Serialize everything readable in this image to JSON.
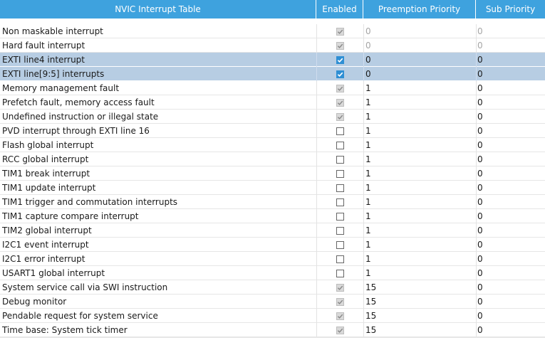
{
  "headers": {
    "name": "NVIC Interrupt Table",
    "enabled": "Enabled",
    "preemption": "Preemption Priority",
    "sub": "Sub Priority"
  },
  "rows": [
    {
      "name": "Non maskable interrupt",
      "enabled": true,
      "enabled_editable": false,
      "preemption": "0",
      "sub": "0",
      "value_muted": true,
      "selected": false
    },
    {
      "name": "Hard fault interrupt",
      "enabled": true,
      "enabled_editable": false,
      "preemption": "0",
      "sub": "0",
      "value_muted": true,
      "selected": false
    },
    {
      "name": "EXTI line4 interrupt",
      "enabled": true,
      "enabled_editable": true,
      "preemption": "0",
      "sub": "0",
      "value_muted": false,
      "selected": true
    },
    {
      "name": "EXTI line[9:5] interrupts",
      "enabled": true,
      "enabled_editable": true,
      "preemption": "0",
      "sub": "0",
      "value_muted": false,
      "selected": true
    },
    {
      "name": "Memory management fault",
      "enabled": true,
      "enabled_editable": false,
      "preemption": "1",
      "sub": "0",
      "value_muted": false,
      "selected": false
    },
    {
      "name": "Prefetch fault, memory access fault",
      "enabled": true,
      "enabled_editable": false,
      "preemption": "1",
      "sub": "0",
      "value_muted": false,
      "selected": false
    },
    {
      "name": "Undefined instruction or illegal state",
      "enabled": true,
      "enabled_editable": false,
      "preemption": "1",
      "sub": "0",
      "value_muted": false,
      "selected": false
    },
    {
      "name": "PVD interrupt through EXTI line 16",
      "enabled": false,
      "enabled_editable": true,
      "preemption": "1",
      "sub": "0",
      "value_muted": false,
      "selected": false
    },
    {
      "name": "Flash global interrupt",
      "enabled": false,
      "enabled_editable": true,
      "preemption": "1",
      "sub": "0",
      "value_muted": false,
      "selected": false
    },
    {
      "name": "RCC global interrupt",
      "enabled": false,
      "enabled_editable": true,
      "preemption": "1",
      "sub": "0",
      "value_muted": false,
      "selected": false
    },
    {
      "name": "TIM1 break interrupt",
      "enabled": false,
      "enabled_editable": true,
      "preemption": "1",
      "sub": "0",
      "value_muted": false,
      "selected": false
    },
    {
      "name": "TIM1 update interrupt",
      "enabled": false,
      "enabled_editable": true,
      "preemption": "1",
      "sub": "0",
      "value_muted": false,
      "selected": false
    },
    {
      "name": "TIM1 trigger and commutation interrupts",
      "enabled": false,
      "enabled_editable": true,
      "preemption": "1",
      "sub": "0",
      "value_muted": false,
      "selected": false
    },
    {
      "name": "TIM1 capture compare interrupt",
      "enabled": false,
      "enabled_editable": true,
      "preemption": "1",
      "sub": "0",
      "value_muted": false,
      "selected": false
    },
    {
      "name": "TIM2 global interrupt",
      "enabled": false,
      "enabled_editable": true,
      "preemption": "1",
      "sub": "0",
      "value_muted": false,
      "selected": false
    },
    {
      "name": "I2C1 event interrupt",
      "enabled": false,
      "enabled_editable": true,
      "preemption": "1",
      "sub": "0",
      "value_muted": false,
      "selected": false
    },
    {
      "name": "I2C1 error interrupt",
      "enabled": false,
      "enabled_editable": true,
      "preemption": "1",
      "sub": "0",
      "value_muted": false,
      "selected": false
    },
    {
      "name": "USART1 global interrupt",
      "enabled": false,
      "enabled_editable": true,
      "preemption": "1",
      "sub": "0",
      "value_muted": false,
      "selected": false
    },
    {
      "name": "System service call via SWI instruction",
      "enabled": true,
      "enabled_editable": false,
      "preemption": "15",
      "sub": "0",
      "value_muted": false,
      "selected": false
    },
    {
      "name": "Debug monitor",
      "enabled": true,
      "enabled_editable": false,
      "preemption": "15",
      "sub": "0",
      "value_muted": false,
      "selected": false
    },
    {
      "name": "Pendable request for system service",
      "enabled": true,
      "enabled_editable": false,
      "preemption": "15",
      "sub": "0",
      "value_muted": false,
      "selected": false
    },
    {
      "name": "Time base: System tick timer",
      "enabled": true,
      "enabled_editable": false,
      "preemption": "15",
      "sub": "0",
      "value_muted": false,
      "selected": false
    }
  ],
  "colors": {
    "header_bg": "#3ea2de",
    "selected_row_bg": "#b7cde3",
    "checkbox_active": "#2f8fd4"
  }
}
